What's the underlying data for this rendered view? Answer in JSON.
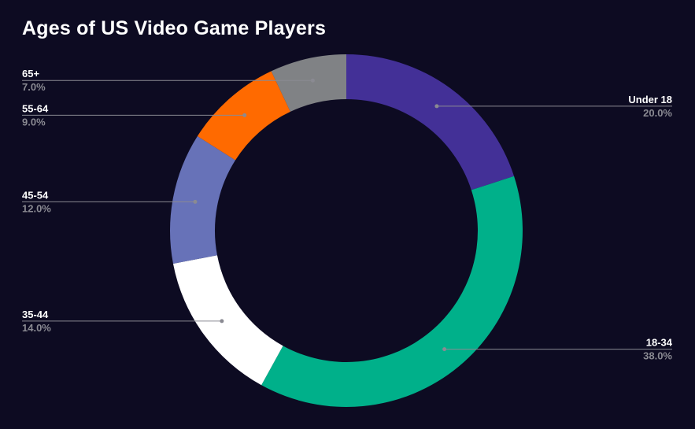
{
  "chart_data": {
    "type": "pie",
    "style": "donut",
    "title": "Ages of US Video Game Players",
    "categories": [
      "Under 18",
      "18-34",
      "35-44",
      "45-54",
      "55-64",
      "65+"
    ],
    "values": [
      20.0,
      38.0,
      14.0,
      12.0,
      9.0,
      7.0
    ],
    "value_labels": [
      "20.0%",
      "38.0%",
      "14.0%",
      "12.0%",
      "9.0%",
      "7.0%"
    ],
    "colors": [
      "#433097",
      "#00b08a",
      "#ffffff",
      "#6772b8",
      "#ff6a00",
      "#808285"
    ],
    "background": "#0d0b22",
    "label_color": "#ffffff",
    "value_label_color": "#8a8a92",
    "leader_line_color": "#8a8a92",
    "start_angle": "top",
    "direction": "clockwise",
    "legend": "none"
  }
}
